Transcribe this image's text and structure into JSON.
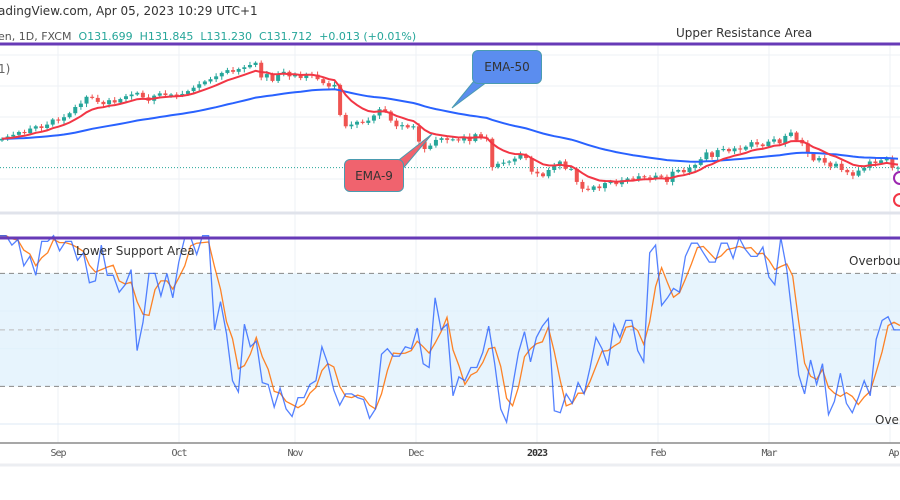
{
  "header": {
    "source_line": "adingView.com, Apr 05, 2023 10:29 UTC+1",
    "symbol_line": "en, 1D, FXCM",
    "open": "O131.699",
    "high": "H131.845",
    "low": "L131.230",
    "close": "C131.712",
    "change": "+0.013 (+0.01%)",
    "indicator_fragment": "1)"
  },
  "annotations": {
    "upper_resistance": "Upper Resistance Area",
    "lower_support": "Lower Support Area",
    "overbought": "Overbought",
    "oversold": "Oversold",
    "ema50_label": "EMA-50",
    "ema9_label": "EMA-9"
  },
  "colors": {
    "up": "#26a69a",
    "down": "#ef5350",
    "ema9": "#f23645",
    "ema50": "#2962ff",
    "stoch_k": "#2962ff",
    "stoch_d": "#ff6d00",
    "zone_line": "#673ab7",
    "band_fill": "#e3f2fd",
    "ema50_callout": "#5b8def",
    "ema9_callout": "#f0636e"
  },
  "chart_data": [
    {
      "type": "candlestick",
      "title": "",
      "interval": "1D",
      "ylim": [
        123.9,
        153.5
      ],
      "grid": true,
      "x_tick_labels": [
        "Sep",
        "Oct",
        "Nov",
        "Dec",
        "2023",
        "Feb",
        "Mar",
        "Apr"
      ],
      "closes": [
        136.8,
        137.2,
        137.5,
        138.0,
        137.8,
        138.6,
        139.0,
        138.7,
        139.3,
        140.2,
        140.0,
        140.6,
        141.3,
        142.4,
        143.0,
        144.2,
        144.0,
        143.3,
        142.9,
        143.6,
        143.2,
        143.8,
        144.3,
        144.6,
        144.9,
        144.1,
        143.5,
        144.4,
        144.8,
        144.5,
        144.6,
        144.4,
        144.7,
        145.2,
        145.8,
        146.4,
        146.9,
        147.3,
        147.8,
        148.4,
        148.9,
        148.6,
        149.1,
        149.4,
        149.8,
        150.2,
        147.6,
        148.2,
        147.0,
        148.3,
        148.6,
        147.8,
        148.1,
        147.5,
        148.2,
        148.1,
        147.3,
        146.6,
        146.0,
        146.3,
        141.0,
        139.0,
        139.3,
        139.8,
        139.6,
        140.0,
        140.9,
        142.0,
        141.6,
        140.0,
        139.0,
        139.2,
        138.8,
        139.0,
        136.3,
        135.0,
        135.6,
        136.6,
        136.9,
        136.6,
        136.7,
        136.5,
        137.2,
        136.4,
        137.6,
        137.0,
        136.8,
        131.8,
        132.4,
        132.6,
        132.8,
        133.3,
        134.0,
        133.4,
        131.0,
        130.7,
        130.2,
        131.3,
        132.0,
        132.8,
        131.5,
        131.5,
        129.2,
        128.0,
        127.8,
        128.4,
        128.1,
        129.0,
        129.3,
        128.8,
        129.5,
        129.8,
        129.6,
        130.2,
        130.0,
        129.7,
        130.3,
        130.1,
        129.2,
        131.0,
        131.3,
        130.9,
        131.7,
        132.2,
        133.2,
        134.4,
        133.6,
        134.8,
        135.0,
        134.6,
        135.1,
        134.9,
        135.4,
        136.2,
        135.8,
        135.5,
        136.3,
        136.7,
        136.0,
        137.3,
        137.9,
        136.6,
        136.0,
        134.2,
        133.0,
        133.4,
        132.6,
        131.9,
        132.4,
        131.3,
        130.9,
        130.3,
        131.2,
        131.7,
        132.8,
        132.5,
        133.0,
        133.3,
        131.7,
        131.712
      ],
      "series": [
        {
          "name": "EMA-9",
          "period": 9
        },
        {
          "name": "EMA-50",
          "period": 50
        }
      ],
      "last_price": 131.712
    },
    {
      "type": "line",
      "title": "",
      "ylim": [
        -8.5,
        111
      ],
      "levels": {
        "overbought": 80,
        "middle": 50,
        "oversold": 20
      },
      "k": [
        100,
        100,
        95,
        98,
        84,
        89,
        79,
        97,
        97,
        100,
        92,
        97,
        97,
        87,
        91,
        75,
        76,
        95,
        79,
        79,
        70,
        74,
        82,
        39,
        54,
        80,
        80,
        68,
        80,
        67,
        86,
        99,
        99,
        90,
        100,
        100,
        50,
        65,
        48,
        23,
        17,
        53,
        41,
        44,
        22,
        21,
        9,
        19,
        8,
        4,
        14,
        14,
        21,
        23,
        41,
        32,
        18,
        10,
        16,
        16,
        14,
        13,
        3,
        8,
        37,
        40,
        36,
        36,
        41,
        40,
        51,
        32,
        30,
        67,
        50,
        53,
        15,
        25,
        23,
        30,
        30,
        38,
        52,
        32,
        8,
        1,
        20,
        38,
        49,
        33,
        46,
        52,
        56,
        7,
        6,
        16,
        11,
        22,
        16,
        30,
        46,
        40,
        31,
        53,
        46,
        55,
        55,
        39,
        33,
        91,
        95,
        63,
        67,
        72,
        70,
        89,
        96,
        96,
        91,
        86,
        86,
        96,
        96,
        88,
        99,
        93,
        89,
        89,
        94,
        78,
        74,
        99,
        82,
        55,
        26,
        16,
        34,
        21,
        32,
        5,
        12,
        27,
        11,
        6,
        14,
        23,
        15,
        45,
        55,
        57,
        50,
        50
      ],
      "d_smoothing": 3
    }
  ]
}
